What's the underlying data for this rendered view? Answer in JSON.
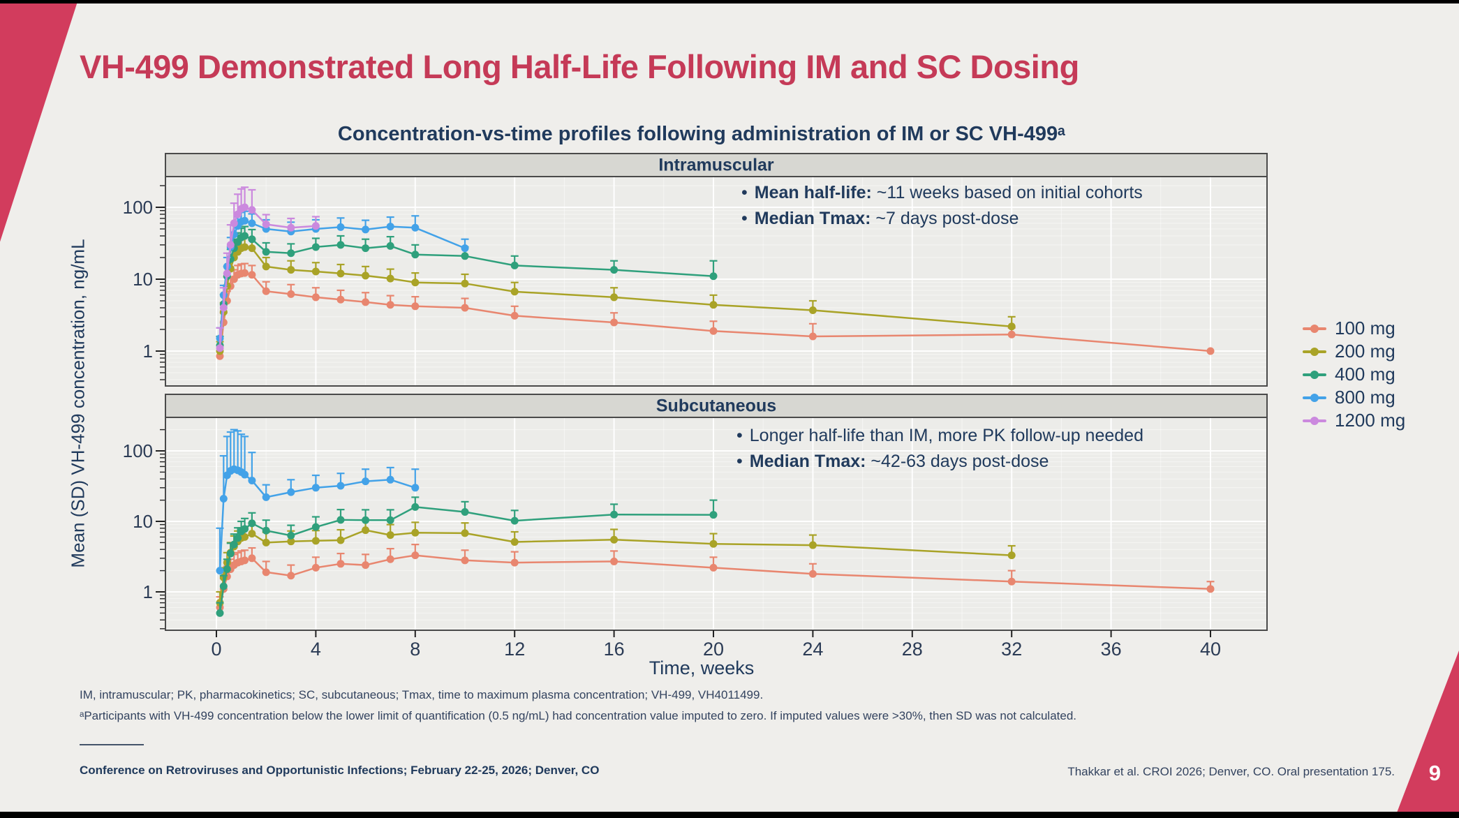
{
  "slide": {
    "title": "VH-499 Demonstrated Long Half-Life Following IM and SC Dosing",
    "page_number": "9",
    "footnote1": "IM, intramuscular; PK, pharmacokinetics; SC, subcutaneous; Tmax, time to maximum plasma concentration; VH-499, VH4011499.",
    "footnote2": "ᵃParticipants with VH-499 concentration below the lower limit of quantification (0.5 ng/mL) had concentration value imputed to zero. If imputed values were >30%, then SD was not calculated.",
    "footer_left": "Conference on Retroviruses and Opportunistic Infections; February 22-25, 2026; Denver, CO",
    "footer_right": "Thakkar et al. CROI 2026; Denver, CO. Oral presentation 175.",
    "accent_color": "#D23C5D",
    "title_color": "#C53A57",
    "navy_color": "#203a5c"
  },
  "chart_data": {
    "type": "line",
    "title": "Concentration-vs-time profiles following administration of IM or SC VH-499ᵃ",
    "xlabel": "Time, weeks",
    "ylabel": "Mean (SD) VH-499 concentration, ng/mL",
    "y_scale": "log",
    "x_ticks": [
      0,
      4,
      8,
      12,
      16,
      20,
      24,
      28,
      32,
      36,
      40
    ],
    "y_ticks": [
      1,
      10,
      100
    ],
    "xlim": [
      -2,
      42.3
    ],
    "grid": true,
    "legend_position": "right",
    "legend": [
      {
        "label": "100 mg",
        "color": "#E8866F"
      },
      {
        "label": "200 mg",
        "color": "#A9A327"
      },
      {
        "label": "400 mg",
        "color": "#2FA07C"
      },
      {
        "label": "800 mg",
        "color": "#43A2E8"
      },
      {
        "label": "1200 mg",
        "color": "#CB89DE"
      }
    ],
    "panels": [
      {
        "id": "im",
        "label": "Intramuscular",
        "annotations": [
          {
            "bold": "Mean half-life:",
            "text": " ~11 weeks based on initial cohorts"
          },
          {
            "bold": "Median Tmax:",
            "text": " ~7 days post-dose"
          }
        ],
        "series": [
          {
            "name": "100 mg",
            "color": "#E8866F",
            "t": [
              0.14,
              0.29,
              0.43,
              0.57,
              0.71,
              0.86,
              1,
              1.14,
              1.43,
              2,
              3,
              4,
              5,
              6,
              7,
              8,
              10,
              12,
              16,
              20,
              24,
              32,
              40
            ],
            "v": [
              0.85,
              2.5,
              5,
              8,
              10,
              11.5,
              12,
              12.2,
              11.5,
              6.8,
              6.2,
              5.6,
              5.2,
              4.8,
              4.4,
              4.2,
              4.0,
              3.1,
              2.5,
              1.9,
              1.6,
              1.7,
              1.0
            ],
            "hi": [
              1.1,
              3.4,
              6.8,
              10.8,
              13.5,
              15.5,
              16.2,
              16.5,
              15.5,
              9.2,
              8.4,
              7.6,
              7.0,
              6.5,
              5.9,
              5.7,
              5.4,
              4.2,
              3.4,
              2.6,
              2.4,
              2.1,
              1.0
            ]
          },
          {
            "name": "200 mg",
            "color": "#A9A327",
            "t": [
              0.14,
              0.29,
              0.43,
              0.57,
              0.71,
              0.86,
              1,
              1.14,
              1.43,
              2,
              3,
              4,
              5,
              6,
              7,
              8,
              10,
              12,
              16,
              20,
              24,
              32
            ],
            "v": [
              1.0,
              3.5,
              8,
              14,
              20,
              24,
              27,
              28,
              27,
              15,
              13.5,
              12.8,
              12,
              11.2,
              10.2,
              9.0,
              8.7,
              6.7,
              5.6,
              4.4,
              3.7,
              2.2
            ],
            "hi": [
              1.35,
              4.7,
              10.8,
              19,
              27,
              32,
              36,
              38,
              36,
              20,
              18,
              17,
              16,
              15,
              13.8,
              12.2,
              11.7,
              9.0,
              7.6,
              6.0,
              5.0,
              3.0
            ]
          },
          {
            "name": "400 mg",
            "color": "#2FA07C",
            "t": [
              0.14,
              0.29,
              0.43,
              0.57,
              0.71,
              0.86,
              1,
              1.14,
              1.43,
              2,
              3,
              4,
              5,
              6,
              7,
              8,
              10,
              12,
              16,
              20
            ],
            "v": [
              1.2,
              4.5,
              11,
              19,
              27,
              33,
              38,
              40,
              36,
              24,
              23,
              28,
              30,
              27,
              29,
              22,
              21,
              15.5,
              13.5,
              11
            ],
            "hi": [
              1.6,
              6.1,
              15,
              26,
              36,
              44,
              51,
              54,
              49,
              32,
              31,
              37,
              40,
              36,
              39,
              30,
              28,
              21,
              18,
              18
            ]
          },
          {
            "name": "800 mg",
            "color": "#43A2E8",
            "t": [
              0.14,
              0.29,
              0.43,
              0.57,
              0.71,
              0.86,
              1,
              1.14,
              1.43,
              2,
              3,
              4,
              5,
              6,
              7,
              8,
              10
            ],
            "v": [
              1.5,
              6,
              15,
              28,
              42,
              55,
              63,
              65,
              60,
              50,
              46,
              50,
              53,
              49,
              54,
              52,
              27
            ],
            "hi": [
              2.1,
              8.2,
              20,
              38,
              57,
              74,
              85,
              88,
              81,
              67,
              62,
              67,
              71,
              66,
              73,
              76,
              36
            ]
          },
          {
            "name": "1200 mg",
            "color": "#CB89DE",
            "t": [
              0.14,
              0.29,
              0.43,
              0.57,
              0.71,
              0.86,
              1,
              1.14,
              1.43,
              2,
              3,
              4
            ],
            "v": [
              1.1,
              4,
              12,
              30,
              60,
              80,
              95,
              100,
              92,
              58,
              52,
              55
            ],
            "hi": [
              2.1,
              7.6,
              23,
              57,
              114,
              152,
              180,
              190,
              175,
              79,
              70,
              74
            ]
          }
        ]
      },
      {
        "id": "sc",
        "label": "Subcutaneous",
        "annotations": [
          {
            "bold": "",
            "text": "Longer half-life than IM, more PK follow-up needed"
          },
          {
            "bold": "Median Tmax:",
            "text": " ~42-63 days post-dose"
          }
        ],
        "series": [
          {
            "name": "100 mg",
            "color": "#E8866F",
            "t": [
              0.14,
              0.29,
              0.43,
              0.57,
              0.71,
              0.86,
              1,
              1.14,
              1.43,
              2,
              3,
              4,
              5,
              6,
              7,
              8,
              10,
              12,
              16,
              20,
              24,
              32,
              40
            ],
            "v": [
              0.6,
              1.1,
              1.65,
              2.1,
              2.4,
              2.6,
              2.7,
              2.8,
              3.0,
              1.9,
              1.7,
              2.2,
              2.5,
              2.4,
              2.9,
              3.3,
              2.8,
              2.6,
              2.7,
              2.2,
              1.8,
              1.4,
              1.1
            ],
            "hi": [
              0.85,
              1.55,
              2.3,
              2.9,
              3.4,
              3.6,
              3.8,
              3.9,
              4.2,
              2.7,
              2.4,
              3.1,
              3.5,
              3.4,
              4.1,
              4.7,
              3.9,
              3.7,
              3.8,
              3.1,
              2.5,
              2.0,
              1.4
            ]
          },
          {
            "name": "200 mg",
            "color": "#A9A327",
            "t": [
              0.14,
              0.29,
              0.43,
              0.57,
              0.71,
              0.86,
              1,
              1.14,
              1.43,
              2,
              3,
              4,
              5,
              6,
              7,
              8,
              10,
              12,
              16,
              20,
              24,
              32
            ],
            "v": [
              0.7,
              1.6,
              2.6,
              3.6,
              4.4,
              5.2,
              5.8,
              6.0,
              6.7,
              5.0,
              5.2,
              5.3,
              5.4,
              7.5,
              6.4,
              6.9,
              6.8,
              5.1,
              5.5,
              4.8,
              4.6,
              3.3
            ],
            "hi": [
              1.0,
              2.2,
              3.6,
              5.0,
              6.2,
              7.3,
              8.1,
              8.4,
              9.4,
              7.0,
              7.3,
              7.4,
              7.6,
              10.5,
              9.0,
              9.7,
              9.5,
              7.1,
              7.7,
              6.7,
              6.4,
              4.5
            ]
          },
          {
            "name": "400 mg",
            "color": "#2FA07C",
            "t": [
              0.14,
              0.29,
              0.43,
              0.57,
              0.71,
              0.86,
              1,
              1.14,
              1.43,
              2,
              3,
              4,
              5,
              6,
              7,
              8,
              10,
              12,
              16,
              20
            ],
            "v": [
              0.5,
              1.2,
              2.1,
              3.5,
              4.7,
              5.8,
              7.2,
              7.8,
              9.4,
              7.4,
              6.3,
              8.3,
              10.5,
              10.4,
              10.4,
              16,
              13.6,
              10.2,
              12.5,
              12.4
            ],
            "hi": [
              0.7,
              1.7,
              2.9,
              4.9,
              6.6,
              8.1,
              10,
              11,
              13.2,
              10.4,
              8.8,
              11.6,
              14.7,
              14.6,
              14.6,
              22,
              19,
              14.3,
              17.5,
              20
            ]
          },
          {
            "name": "800 mg",
            "color": "#43A2E8",
            "t": [
              0.14,
              0.29,
              0.43,
              0.57,
              0.71,
              0.86,
              1,
              1.14,
              1.43,
              2,
              3,
              4,
              5,
              6,
              7,
              8
            ],
            "v": [
              2,
              21,
              45,
              52,
              55,
              53,
              50,
              46,
              38,
              22,
              26,
              30,
              32,
              37,
              39,
              30
            ],
            "hi": [
              8,
              85,
              160,
              185,
              200,
              192,
              172,
              160,
              95,
              33,
              39,
              45,
              48,
              55,
              58,
              55
            ]
          }
        ]
      }
    ]
  }
}
